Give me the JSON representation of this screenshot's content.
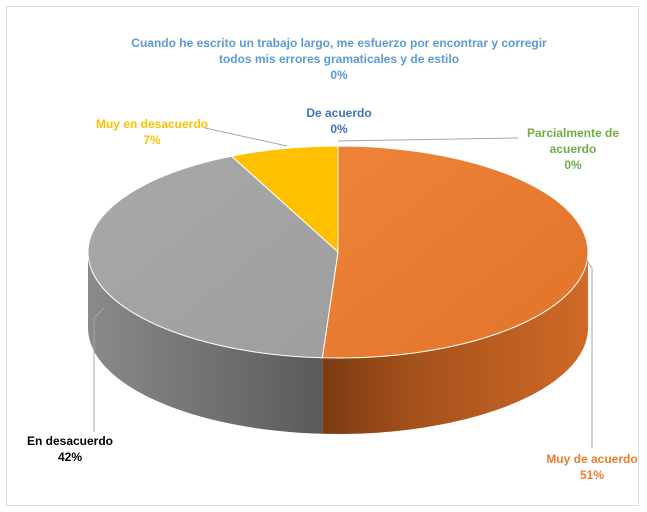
{
  "chart_data": {
    "type": "pie",
    "title": "",
    "categories": [
      "Muy de acuerdo",
      "En desacuerdo",
      "Muy en desacuerdo",
      "De acuerdo",
      "Parcialmente de acuerdo",
      "Cuando he escrito un trabajo largo, me esfuerzo por encontrar y corregir todos mis errores gramaticales y de estilo"
    ],
    "values": [
      51,
      42,
      7,
      0,
      0,
      0
    ],
    "value_labels": [
      "51%",
      "42%",
      "7%",
      "0%",
      "0%",
      "0%"
    ],
    "colors": [
      "#ED7D31",
      "#A5A5A5",
      "#FFC000",
      "#4472C4",
      "#70AD47",
      "#5B9BD5"
    ],
    "style": "3d",
    "legend": "none"
  }
}
